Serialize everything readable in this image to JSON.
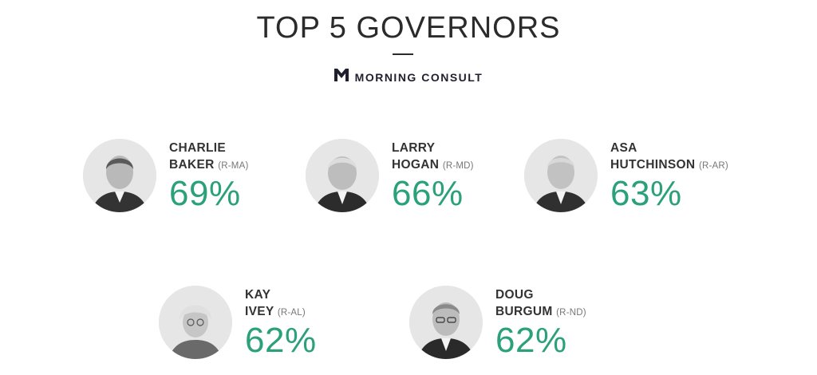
{
  "header": {
    "title": "TOP 5 GOVERNORS",
    "brand": "MORNING CONSULT",
    "brand_logo": "morning-consult-logo"
  },
  "colors": {
    "accent": "#2aa17a",
    "text": "#333333"
  },
  "governors": [
    {
      "first": "CHARLIE",
      "last": "BAKER",
      "party": "(R-MA)",
      "approval": "69%"
    },
    {
      "first": "LARRY",
      "last": "HOGAN",
      "party": "(R-MD)",
      "approval": "66%"
    },
    {
      "first": "ASA",
      "last": "HUTCHINSON",
      "party": "(R-AR)",
      "approval": "63%"
    },
    {
      "first": "KAY",
      "last": "IVEY",
      "party": "(R-AL)",
      "approval": "62%"
    },
    {
      "first": "DOUG",
      "last": "BURGUM",
      "party": "(R-ND)",
      "approval": "62%"
    }
  ]
}
